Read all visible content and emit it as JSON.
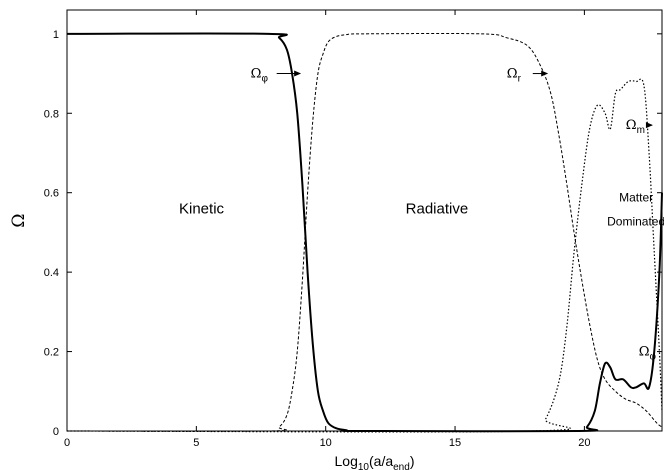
{
  "chart_data": {
    "type": "line",
    "xlabel": {
      "prefix": "Log",
      "sub1": "10",
      "mid": "(a/a",
      "sub2": "end",
      "suffix": ")"
    },
    "ylabel": "Ω",
    "xlim": [
      0,
      23
    ],
    "ylim": [
      0,
      1.06
    ],
    "x_ticks": [
      0,
      5,
      10,
      15,
      20
    ],
    "x_tick_labels": [
      "0",
      "5",
      "10",
      "15",
      "20"
    ],
    "y_ticks": [
      0,
      0.2,
      0.4,
      0.6,
      0.8,
      1
    ],
    "y_tick_labels": [
      "0",
      "0.2",
      "0.4",
      "0.6",
      "0.8",
      "1"
    ],
    "grid": false,
    "series": [
      {
        "name": "Ω_φ",
        "style": "solid",
        "x": [
          0,
          7.8,
          8.2,
          8.5,
          8.7,
          8.9,
          9.1,
          9.3,
          9.5,
          9.7,
          9.9,
          10.1,
          10.4,
          10.8,
          11.5,
          19.8,
          20.1,
          20.4,
          20.6,
          20.8,
          21.0,
          21.2,
          21.5,
          21.8,
          22.0,
          22.3,
          22.5,
          22.7,
          22.9,
          23.0
        ],
        "y": [
          1,
          1,
          0.99,
          0.96,
          0.9,
          0.8,
          0.62,
          0.4,
          0.22,
          0.1,
          0.05,
          0.02,
          0.007,
          0.002,
          0.0,
          0.0,
          0.01,
          0.05,
          0.12,
          0.17,
          0.16,
          0.13,
          0.13,
          0.11,
          0.11,
          0.12,
          0.11,
          0.2,
          0.4,
          0.6
        ]
      },
      {
        "name": "Ω_r",
        "style": "dashed",
        "x": [
          0,
          7.8,
          8.2,
          8.5,
          8.7,
          8.9,
          9.1,
          9.3,
          9.5,
          9.7,
          9.9,
          10.1,
          10.4,
          10.8,
          11.5,
          16.0,
          17.0,
          17.8,
          18.3,
          18.7,
          19.0,
          19.3,
          19.6,
          19.9,
          20.2,
          20.5,
          20.8,
          21.2,
          21.6,
          22.0,
          22.4,
          22.8,
          23.0
        ],
        "y": [
          0,
          0,
          0.01,
          0.04,
          0.1,
          0.2,
          0.38,
          0.6,
          0.78,
          0.9,
          0.95,
          0.98,
          0.993,
          0.998,
          1.0,
          1.0,
          0.99,
          0.97,
          0.92,
          0.85,
          0.75,
          0.63,
          0.5,
          0.38,
          0.27,
          0.18,
          0.13,
          0.1,
          0.08,
          0.07,
          0.05,
          0.02,
          0.01
        ]
      },
      {
        "name": "Ω_m",
        "style": "dotted",
        "x": [
          0,
          18.0,
          18.5,
          19.0,
          19.3,
          19.6,
          19.9,
          20.2,
          20.5,
          20.8,
          21.0,
          21.2,
          21.4,
          21.7,
          22.0,
          22.3,
          22.5,
          22.7,
          22.9,
          23.0
        ],
        "y": [
          0,
          0,
          0.03,
          0.12,
          0.25,
          0.45,
          0.62,
          0.76,
          0.82,
          0.8,
          0.76,
          0.85,
          0.86,
          0.88,
          0.88,
          0.87,
          0.7,
          0.45,
          0.2,
          0.05
        ]
      }
    ],
    "annotations": [
      {
        "sym": "Ω",
        "sub": "φ",
        "x": 9.1,
        "y": 0.9,
        "arrow_to_x": 9.05,
        "label_x": 7.1,
        "size": "normal"
      },
      {
        "sym": "Ω",
        "sub": "r",
        "x": 18.6,
        "y": 0.9,
        "arrow_to_x": 18.6,
        "label_x": 17.0,
        "size": "normal"
      },
      {
        "sym": "Ω",
        "sub": "m",
        "x": 21.6,
        "y": 0.77,
        "arrow_to_x": 22.65,
        "label_x": 21.6,
        "size": "normal"
      },
      {
        "sym": "Ω",
        "sub": "φ",
        "x": 22.7,
        "y": 0.2,
        "arrow_to_x": null,
        "label_x": 22.1,
        "size": "normal"
      }
    ],
    "regions": [
      {
        "text": "Kinetic",
        "x": 5.2,
        "y": 0.56,
        "size": "large"
      },
      {
        "text": "Radiative",
        "x": 14.3,
        "y": 0.56,
        "size": "large"
      },
      {
        "text": "Matter",
        "x": 22.0,
        "y": 0.59,
        "size": "small"
      },
      {
        "text": "Dominated",
        "x": 22.0,
        "y": 0.53,
        "size": "small"
      }
    ]
  }
}
